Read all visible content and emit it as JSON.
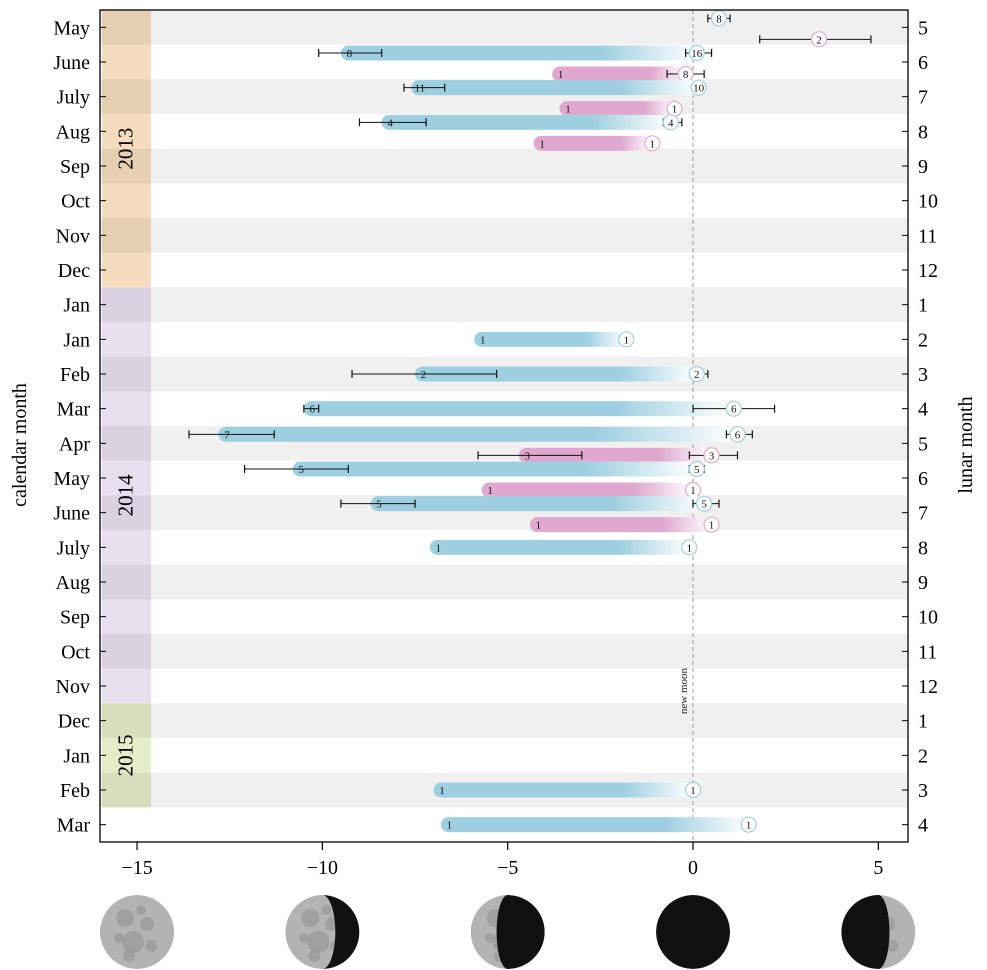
{
  "chart_data": {
    "type": "range-bar",
    "xlabel": "",
    "ylabel_left": "calendar month",
    "ylabel_right": "lunar month",
    "xlim": [
      -16,
      5.8
    ],
    "xticks": [
      -15,
      -10,
      -5,
      0,
      5
    ],
    "reference_line": {
      "x": 0,
      "label": "new moon"
    },
    "year_bands": [
      {
        "label": "2013",
        "start_row": 0,
        "end_row": 7,
        "color": "#f6dcbe"
      },
      {
        "label": "2014",
        "start_row": 8,
        "end_row": 19,
        "color": "#e8e0ee"
      },
      {
        "label": "2015",
        "start_row": 20,
        "end_row": 22,
        "color": "#e4ecc8"
      }
    ],
    "rows": [
      {
        "calendar": "May",
        "lunar": "5"
      },
      {
        "calendar": "June",
        "lunar": "6"
      },
      {
        "calendar": "July",
        "lunar": "7"
      },
      {
        "calendar": "Aug",
        "lunar": "8"
      },
      {
        "calendar": "Sep",
        "lunar": "9"
      },
      {
        "calendar": "Oct",
        "lunar": "10"
      },
      {
        "calendar": "Nov",
        "lunar": "11"
      },
      {
        "calendar": "Dec",
        "lunar": "12"
      },
      {
        "calendar": "Jan",
        "lunar": "1"
      },
      {
        "calendar": "Jan",
        "lunar": "2"
      },
      {
        "calendar": "Feb",
        "lunar": "3"
      },
      {
        "calendar": "Mar",
        "lunar": "4"
      },
      {
        "calendar": "Apr",
        "lunar": "5"
      },
      {
        "calendar": "May",
        "lunar": "6"
      },
      {
        "calendar": "June",
        "lunar": "7"
      },
      {
        "calendar": "July",
        "lunar": "8"
      },
      {
        "calendar": "Aug",
        "lunar": "9"
      },
      {
        "calendar": "Sep",
        "lunar": "10"
      },
      {
        "calendar": "Oct",
        "lunar": "11"
      },
      {
        "calendar": "Nov",
        "lunar": "12"
      },
      {
        "calendar": "Dec",
        "lunar": "1"
      },
      {
        "calendar": "Jan",
        "lunar": "2"
      },
      {
        "calendar": "Feb",
        "lunar": "3"
      },
      {
        "calendar": "Mar",
        "lunar": "4"
      }
    ],
    "series": [
      {
        "color": "#9dcfe0",
        "end_color": "#ffffff"
      },
      {
        "color": "#e0a8cf",
        "end_color": "#ffffff"
      }
    ],
    "bars": [
      {
        "row": 1,
        "series": 0,
        "sub": "upper",
        "start": -9.3,
        "start_n": "8",
        "start_err": [
          -10.1,
          -8.4
        ],
        "end": 0.1,
        "end_n": "16",
        "end_err": [
          -0.2,
          0.5
        ]
      },
      {
        "row": 1,
        "series": 1,
        "sub": "lower",
        "start": -3.6,
        "start_n": "1",
        "end": -0.2,
        "end_n": "8",
        "end_err": [
          -0.7,
          0.3
        ]
      },
      {
        "row": 2,
        "series": 0,
        "sub": "upper",
        "start": -7.4,
        "start_n": "11",
        "start_err": [
          -7.8,
          -6.7
        ],
        "end": 0.15,
        "end_n": "10"
      },
      {
        "row": 2,
        "series": 1,
        "sub": "lower",
        "start": -3.4,
        "start_n": "1",
        "end": -0.5,
        "end_n": "1"
      },
      {
        "row": 3,
        "series": 0,
        "sub": "upper",
        "start": -8.2,
        "start_n": "4",
        "start_err": [
          -9.0,
          -7.2
        ],
        "end": -0.6,
        "end_n": "4",
        "end_err": [
          -0.8,
          -0.3
        ]
      },
      {
        "row": 3,
        "series": 1,
        "sub": "lower",
        "start": -4.1,
        "start_n": "1",
        "end": -1.1,
        "end_n": "1"
      },
      {
        "row": 9,
        "series": 0,
        "sub": "full",
        "start": -5.7,
        "start_n": "1",
        "end": -1.8,
        "end_n": "1"
      },
      {
        "row": 10,
        "series": 0,
        "sub": "full",
        "start": -7.3,
        "start_n": "2",
        "start_err": [
          -9.2,
          -5.3
        ],
        "end": 0.1,
        "end_n": "2",
        "end_err": [
          0.05,
          0.4
        ]
      },
      {
        "row": 11,
        "series": 0,
        "sub": "full",
        "start": -10.3,
        "start_n": "6",
        "start_err": [
          -10.5,
          -10.1
        ],
        "end": 1.1,
        "end_n": "6",
        "end_err": [
          0.0,
          2.2
        ]
      },
      {
        "row": 12,
        "series": 0,
        "sub": "upper",
        "start": -12.6,
        "start_n": "7",
        "start_err": [
          -13.6,
          -11.3
        ],
        "end": 1.2,
        "end_n": "6",
        "end_err": [
          0.9,
          1.6
        ]
      },
      {
        "row": 12,
        "series": 1,
        "sub": "lower",
        "start": -4.5,
        "start_n": "3",
        "start_err": [
          -5.8,
          -3.0
        ],
        "end": 0.5,
        "end_n": "3",
        "end_err": [
          -0.1,
          1.2
        ]
      },
      {
        "row": 13,
        "series": 0,
        "sub": "upper",
        "start": -10.6,
        "start_n": "5",
        "start_err": [
          -12.1,
          -9.3
        ],
        "end": 0.1,
        "end_n": "5",
        "end_err": [
          -0.1,
          0.3
        ]
      },
      {
        "row": 13,
        "series": 1,
        "sub": "lower",
        "start": -5.5,
        "start_n": "1",
        "end": 0.0,
        "end_n": "1"
      },
      {
        "row": 14,
        "series": 0,
        "sub": "upper",
        "start": -8.5,
        "start_n": "5",
        "start_err": [
          -9.5,
          -7.5
        ],
        "end": 0.3,
        "end_n": "5",
        "end_err": [
          0.0,
          0.7
        ]
      },
      {
        "row": 14,
        "series": 1,
        "sub": "lower",
        "start": -4.2,
        "start_n": "1",
        "end": 0.5,
        "end_n": "1"
      },
      {
        "row": 15,
        "series": 0,
        "sub": "full",
        "start": -6.9,
        "start_n": "1",
        "end": -0.1,
        "end_n": "1"
      },
      {
        "row": 22,
        "series": 0,
        "sub": "full",
        "start": -6.8,
        "start_n": "1",
        "end": 0.0,
        "end_n": "1"
      },
      {
        "row": 23,
        "series": 0,
        "sub": "full",
        "start": -6.6,
        "start_n": "1",
        "end": 1.5,
        "end_n": "1"
      }
    ],
    "points": [
      {
        "row": 0,
        "series": 0,
        "sub": "upper",
        "x": 0.7,
        "n": "8",
        "err": [
          0.4,
          1.0
        ]
      },
      {
        "row": 0,
        "series": 1,
        "sub": "lower",
        "x": 3.4,
        "n": "2",
        "err": [
          1.8,
          4.8
        ]
      }
    ],
    "moon_phases": [
      {
        "x": -15,
        "phase": "full"
      },
      {
        "x": -10,
        "phase": "waning-gibbous"
      },
      {
        "x": -5,
        "phase": "third-quarter"
      },
      {
        "x": 0,
        "phase": "new"
      },
      {
        "x": 5,
        "phase": "first-quarter"
      }
    ]
  }
}
